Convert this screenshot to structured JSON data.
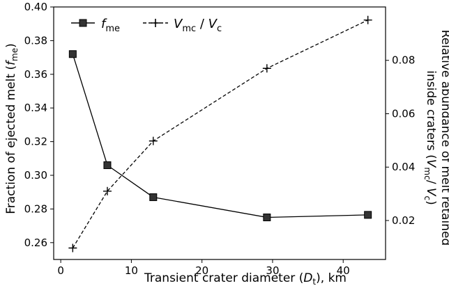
{
  "chart_data": {
    "type": "line",
    "xlabel_parts": [
      "Transient crater diameter (",
      "D",
      "t",
      "), km"
    ],
    "ylabel_left_parts": [
      "Fraction of ejected melt (",
      "f",
      "me",
      ")"
    ],
    "ylabel_right_line1": "Relative abundance of melt retained",
    "ylabel_right_line2_parts": [
      "inside craters (",
      "V",
      "mc",
      "/ ",
      "V",
      "c",
      ")"
    ],
    "xlim": [
      -1,
      46
    ],
    "ylim_left": [
      0.25,
      0.4
    ],
    "ylim_right": [
      0.0054,
      0.1
    ],
    "x_ticks": [
      0,
      10,
      20,
      30,
      40
    ],
    "x_tick_labels": [
      "0",
      "10",
      "20",
      "30",
      "40"
    ],
    "y_left_ticks": [
      0.26,
      0.28,
      0.3,
      0.32,
      0.34,
      0.36,
      0.38,
      0.4
    ],
    "y_left_tick_labels": [
      "0.26",
      "0.28",
      "0.30",
      "0.32",
      "0.34",
      "0.36",
      "0.38",
      "0.40"
    ],
    "y_right_ticks": [
      0.02,
      0.04,
      0.06,
      0.08
    ],
    "y_right_tick_labels": [
      "0.02",
      "0.04",
      "0.06",
      "0.08"
    ],
    "grid": false,
    "legend_position": "top-left",
    "series": [
      {
        "name_parts": [
          "f",
          "me"
        ],
        "axis": "left",
        "style": "solid",
        "marker": "square",
        "color": "#000000",
        "marker_fill": "#333333",
        "x": [
          1.7,
          6.6,
          13.1,
          29.2,
          43.5
        ],
        "y": [
          0.372,
          0.306,
          0.287,
          0.275,
          0.2765
        ]
      },
      {
        "name_parts": [
          "V",
          "mc",
          " / ",
          "V",
          "c"
        ],
        "axis": "right",
        "style": "dashed",
        "marker": "plus",
        "color": "#000000",
        "x": [
          1.7,
          6.6,
          13.1,
          29.2,
          43.5
        ],
        "y": [
          0.0097,
          0.031,
          0.0498,
          0.077,
          0.0951
        ]
      }
    ]
  }
}
